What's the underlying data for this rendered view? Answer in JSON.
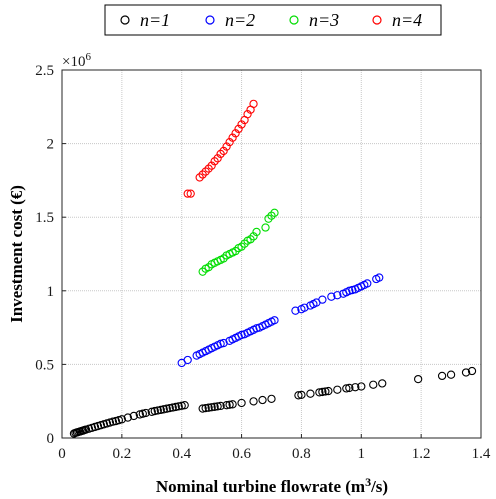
{
  "chart_data": {
    "type": "scatter",
    "xlabel": "Nominal turbine flowrate (m",
    "xlabel_sup": "3",
    "xlabel_tail": "/s)",
    "ylabel": "Investment cost (€)",
    "y_multiplier": {
      "base": "×10",
      "exp": "6"
    },
    "xlim": [
      0,
      1.4
    ],
    "ylim": [
      0,
      2.5
    ],
    "xticks": [
      0,
      0.2,
      0.4,
      0.6,
      0.8,
      1,
      1.2,
      1.4
    ],
    "xtick_labels": [
      "0",
      "0.2",
      "0.4",
      "0.6",
      "0.8",
      "1",
      "1.2",
      "1.4"
    ],
    "yticks": [
      0,
      0.5,
      1,
      1.5,
      2,
      2.5
    ],
    "ytick_labels": [
      "0",
      "0.5",
      "1",
      "1.5",
      "2",
      "2.5"
    ],
    "grid": true,
    "legend_position": "top",
    "series": [
      {
        "name": "n=1",
        "color": "#000000",
        "x": [
          0.04,
          0.045,
          0.05,
          0.055,
          0.06,
          0.065,
          0.07,
          0.075,
          0.08,
          0.09,
          0.1,
          0.11,
          0.12,
          0.13,
          0.14,
          0.15,
          0.16,
          0.17,
          0.18,
          0.19,
          0.2,
          0.22,
          0.24,
          0.26,
          0.27,
          0.28,
          0.3,
          0.31,
          0.32,
          0.33,
          0.34,
          0.35,
          0.36,
          0.37,
          0.38,
          0.39,
          0.4,
          0.41,
          0.47,
          0.48,
          0.49,
          0.5,
          0.51,
          0.52,
          0.53,
          0.55,
          0.56,
          0.57,
          0.6,
          0.64,
          0.67,
          0.7,
          0.79,
          0.8,
          0.83,
          0.86,
          0.87,
          0.88,
          0.89,
          0.92,
          0.95,
          0.96,
          0.98,
          1.0,
          1.04,
          1.07,
          1.19,
          1.27,
          1.3,
          1.35,
          1.37
        ],
        "y": [
          0.03,
          0.035,
          0.038,
          0.041,
          0.044,
          0.047,
          0.05,
          0.054,
          0.057,
          0.063,
          0.069,
          0.075,
          0.081,
          0.087,
          0.093,
          0.099,
          0.105,
          0.111,
          0.115,
          0.121,
          0.127,
          0.139,
          0.15,
          0.16,
          0.165,
          0.17,
          0.178,
          0.183,
          0.187,
          0.191,
          0.195,
          0.199,
          0.203,
          0.207,
          0.211,
          0.215,
          0.219,
          0.223,
          0.2,
          0.203,
          0.206,
          0.209,
          0.212,
          0.215,
          0.218,
          0.223,
          0.226,
          0.229,
          0.238,
          0.249,
          0.258,
          0.266,
          0.29,
          0.293,
          0.301,
          0.31,
          0.313,
          0.316,
          0.319,
          0.328,
          0.337,
          0.34,
          0.345,
          0.35,
          0.362,
          0.371,
          0.4,
          0.422,
          0.43,
          0.445,
          0.455
        ]
      },
      {
        "name": "n=2",
        "color": "#0000ff",
        "x": [
          0.4,
          0.42,
          0.45,
          0.46,
          0.47,
          0.48,
          0.49,
          0.5,
          0.51,
          0.52,
          0.53,
          0.54,
          0.56,
          0.57,
          0.58,
          0.59,
          0.6,
          0.61,
          0.62,
          0.63,
          0.64,
          0.65,
          0.66,
          0.67,
          0.68,
          0.69,
          0.7,
          0.71,
          0.78,
          0.8,
          0.81,
          0.83,
          0.84,
          0.85,
          0.87,
          0.9,
          0.92,
          0.94,
          0.95,
          0.96,
          0.97,
          0.98,
          0.99,
          1.0,
          1.01,
          1.02,
          1.05,
          1.06
        ],
        "y": [
          0.51,
          0.53,
          0.56,
          0.57,
          0.58,
          0.59,
          0.6,
          0.61,
          0.62,
          0.63,
          0.64,
          0.645,
          0.66,
          0.67,
          0.68,
          0.69,
          0.7,
          0.705,
          0.715,
          0.725,
          0.735,
          0.745,
          0.75,
          0.76,
          0.77,
          0.78,
          0.79,
          0.8,
          0.865,
          0.875,
          0.885,
          0.9,
          0.91,
          0.92,
          0.94,
          0.96,
          0.97,
          0.98,
          0.99,
          1.0,
          1.005,
          1.01,
          1.02,
          1.03,
          1.04,
          1.05,
          1.08,
          1.09
        ]
      },
      {
        "name": "n=3",
        "color": "#00dd00",
        "x": [
          0.47,
          0.48,
          0.49,
          0.5,
          0.51,
          0.52,
          0.53,
          0.54,
          0.55,
          0.56,
          0.57,
          0.58,
          0.59,
          0.6,
          0.61,
          0.62,
          0.63,
          0.64,
          0.65,
          0.68,
          0.69,
          0.7,
          0.71
        ],
        "y": [
          1.13,
          1.15,
          1.16,
          1.18,
          1.19,
          1.2,
          1.21,
          1.22,
          1.24,
          1.25,
          1.26,
          1.27,
          1.29,
          1.3,
          1.32,
          1.34,
          1.35,
          1.37,
          1.4,
          1.43,
          1.49,
          1.51,
          1.53
        ]
      },
      {
        "name": "n=4",
        "color": "#ff0000",
        "x": [
          0.42,
          0.43,
          0.46,
          0.47,
          0.48,
          0.49,
          0.5,
          0.51,
          0.52,
          0.53,
          0.54,
          0.55,
          0.56,
          0.57,
          0.58,
          0.59,
          0.6,
          0.61,
          0.62,
          0.63,
          0.64
        ],
        "y": [
          1.66,
          1.66,
          1.77,
          1.79,
          1.81,
          1.83,
          1.85,
          1.88,
          1.9,
          1.93,
          1.95,
          1.98,
          2.01,
          2.04,
          2.07,
          2.1,
          2.13,
          2.16,
          2.2,
          2.23,
          2.27
        ]
      }
    ]
  }
}
